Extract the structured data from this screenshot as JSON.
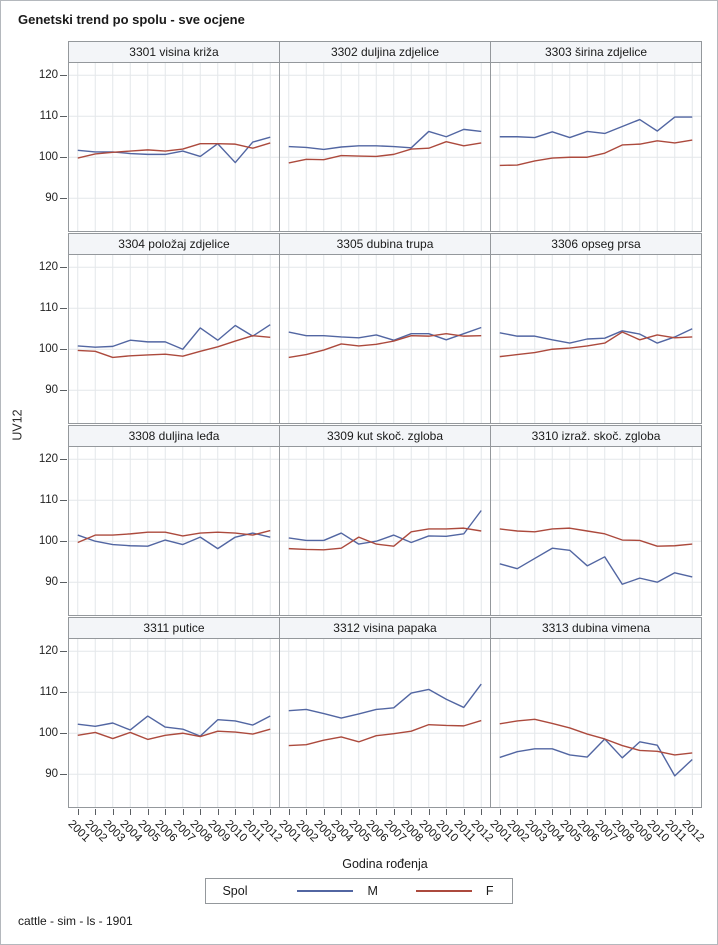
{
  "page": {
    "footer": "cattle - sim - ls - 1901"
  },
  "chart_data": {
    "type": "line",
    "title": "Genetski trend po spolu - sve ocjene",
    "xlabel": "Godina rođenja",
    "ylabel": "UV12",
    "x": [
      "2001",
      "2002",
      "2003",
      "2004",
      "2005",
      "2006",
      "2007",
      "2008",
      "2009",
      "2010",
      "2011",
      "2012"
    ],
    "yticks": [
      90,
      100,
      110,
      120
    ],
    "ylim": [
      82,
      123
    ],
    "grid": true,
    "legend": {
      "title": "Spol",
      "position": "bottom",
      "entries": [
        {
          "name": "M",
          "color": "#5266a2"
        },
        {
          "name": "F",
          "color": "#ac4a3d"
        }
      ]
    },
    "panels": [
      {
        "title": "3301 visina križa",
        "series": [
          {
            "name": "M",
            "values": [
              101.7,
              101.3,
              101.3,
              100.9,
              100.7,
              100.7,
              101.5,
              100.2,
              103.3,
              98.7,
              103.7,
              104.9
            ]
          },
          {
            "name": "F",
            "values": [
              99.8,
              100.8,
              101.2,
              101.5,
              101.8,
              101.5,
              102.0,
              103.3,
              103.3,
              103.2,
              102.2,
              103.5
            ]
          }
        ]
      },
      {
        "title": "3302 duljina zdjelice",
        "series": [
          {
            "name": "M",
            "values": [
              102.6,
              102.4,
              101.9,
              102.5,
              102.8,
              102.8,
              102.6,
              102.3,
              106.3,
              105.0,
              106.8,
              106.3
            ]
          },
          {
            "name": "F",
            "values": [
              98.6,
              99.5,
              99.4,
              100.4,
              100.3,
              100.2,
              100.7,
              102.0,
              102.2,
              103.8,
              102.8,
              103.5
            ]
          }
        ]
      },
      {
        "title": "3303 širina zdjelice",
        "series": [
          {
            "name": "M",
            "values": [
              105.0,
              105.0,
              104.8,
              106.2,
              104.8,
              106.3,
              105.8,
              107.5,
              109.2,
              106.4,
              109.8,
              109.8
            ]
          },
          {
            "name": "F",
            "values": [
              98.0,
              98.1,
              99.1,
              99.8,
              100.0,
              100.0,
              101.0,
              103.0,
              103.2,
              104.0,
              103.5,
              104.2
            ]
          }
        ]
      },
      {
        "title": "3304 položaj zdjelice",
        "series": [
          {
            "name": "M",
            "values": [
              100.8,
              100.5,
              100.7,
              102.2,
              101.8,
              101.8,
              100.0,
              105.2,
              102.2,
              105.8,
              103.2,
              106.0
            ]
          },
          {
            "name": "F",
            "values": [
              99.7,
              99.5,
              98.0,
              98.4,
              98.6,
              98.8,
              98.3,
              99.5,
              100.6,
              102.0,
              103.3,
              102.9
            ]
          }
        ]
      },
      {
        "title": "3305 dubina trupa",
        "series": [
          {
            "name": "M",
            "values": [
              104.2,
              103.3,
              103.3,
              103.0,
              102.8,
              103.5,
              102.2,
              103.8,
              103.8,
              102.3,
              103.8,
              105.3
            ]
          },
          {
            "name": "F",
            "values": [
              98.0,
              98.7,
              99.8,
              101.3,
              100.8,
              101.2,
              102.0,
              103.3,
              103.2,
              103.8,
              103.2,
              103.3
            ]
          }
        ]
      },
      {
        "title": "3306 opseg prsa",
        "series": [
          {
            "name": "M",
            "values": [
              104.0,
              103.2,
              103.2,
              102.3,
              101.5,
              102.5,
              102.7,
              104.5,
              103.7,
              101.5,
              103.0,
              105.0
            ]
          },
          {
            "name": "F",
            "values": [
              98.2,
              98.7,
              99.2,
              100.0,
              100.3,
              100.8,
              101.5,
              104.2,
              102.3,
              103.5,
              102.8,
              103.0
            ]
          }
        ]
      },
      {
        "title": "3308 duljina leđa",
        "series": [
          {
            "name": "M",
            "values": [
              101.5,
              100.0,
              99.2,
              98.9,
              98.8,
              100.3,
              99.2,
              101.0,
              98.2,
              101.0,
              102.0,
              101.0
            ]
          },
          {
            "name": "F",
            "values": [
              99.7,
              101.5,
              101.5,
              101.8,
              102.2,
              102.2,
              101.3,
              102.0,
              102.2,
              102.0,
              101.5,
              102.6
            ]
          }
        ]
      },
      {
        "title": "3309 kut skoč. zgloba",
        "series": [
          {
            "name": "M",
            "values": [
              100.8,
              100.2,
              100.2,
              102.0,
              99.3,
              100.0,
              101.5,
              99.7,
              101.3,
              101.2,
              101.8,
              107.5
            ]
          },
          {
            "name": "F",
            "values": [
              98.2,
              98.0,
              97.9,
              98.3,
              101.0,
              99.3,
              98.8,
              102.3,
              103.0,
              103.0,
              103.2,
              102.5
            ]
          }
        ]
      },
      {
        "title": "3310 izraž. skoč. zgloba",
        "series": [
          {
            "name": "M",
            "values": [
              94.5,
              93.3,
              95.8,
              98.3,
              97.8,
              94.0,
              96.2,
              89.5,
              91.0,
              90.0,
              92.3,
              91.3
            ]
          },
          {
            "name": "F",
            "values": [
              103.0,
              102.5,
              102.3,
              103.0,
              103.2,
              102.5,
              101.8,
              100.3,
              100.2,
              98.8,
              98.9,
              99.3
            ]
          }
        ]
      },
      {
        "title": "3311 putice",
        "series": [
          {
            "name": "M",
            "values": [
              102.2,
              101.7,
              102.5,
              100.8,
              104.2,
              101.5,
              101.0,
              99.3,
              103.3,
              103.0,
              102.0,
              104.2
            ]
          },
          {
            "name": "F",
            "values": [
              99.5,
              100.2,
              98.7,
              100.2,
              98.5,
              99.5,
              100.0,
              99.2,
              100.5,
              100.3,
              99.8,
              101.0
            ]
          }
        ]
      },
      {
        "title": "3312 visina papaka",
        "series": [
          {
            "name": "M",
            "values": [
              105.5,
              105.8,
              104.8,
              103.7,
              104.7,
              105.8,
              106.2,
              109.8,
              110.7,
              108.3,
              106.3,
              112.0
            ]
          },
          {
            "name": "F",
            "values": [
              97.0,
              97.2,
              98.3,
              99.1,
              97.9,
              99.4,
              99.9,
              100.5,
              102.1,
              101.9,
              101.8,
              103.1
            ]
          }
        ]
      },
      {
        "title": "3313 dubina vimena",
        "series": [
          {
            "name": "M",
            "values": [
              94.1,
              95.5,
              96.2,
              96.2,
              94.7,
              94.2,
              98.6,
              94.0,
              97.9,
              97.1,
              89.6,
              93.6
            ]
          },
          {
            "name": "F",
            "values": [
              102.3,
              103.0,
              103.4,
              102.4,
              101.3,
              99.8,
              98.6,
              97.0,
              95.8,
              95.6,
              94.7,
              95.2
            ]
          }
        ]
      }
    ]
  }
}
